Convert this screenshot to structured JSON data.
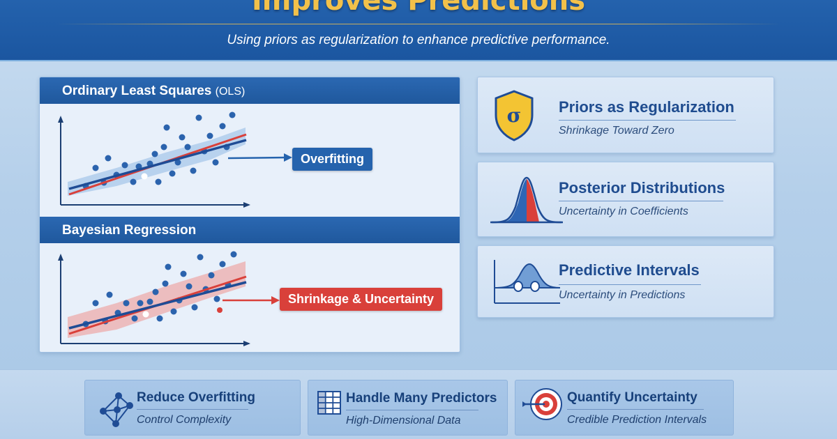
{
  "header": {
    "title": "Improves Predictions",
    "subtitle": "Using priors as regularization to enhance predictive performance."
  },
  "left_panel": {
    "ols": {
      "title": "Ordinary Least Squares",
      "title_suffix": "(OLS)",
      "tag": "Overfitting"
    },
    "bayesian": {
      "title": "Bayesian Regression",
      "tag": "Shrinkage & Uncertainty"
    }
  },
  "cards": [
    {
      "title": "Priors as Regularization",
      "subtitle": "Shrinkage Toward Zero",
      "icon": "shield-sigma-icon",
      "icon_text": "σ"
    },
    {
      "title": "Posterior Distributions",
      "subtitle": "Uncertainty in Coefficients",
      "icon": "bell-curve-icon"
    },
    {
      "title": "Predictive Intervals",
      "subtitle": "Uncertainty in Predictions",
      "icon": "interval-curve-icon"
    }
  ],
  "bottom": [
    {
      "title": "Reduce Overfitting",
      "subtitle": "Control Complexity",
      "icon": "network-icon"
    },
    {
      "title": "Handle Many Predictors",
      "subtitle": "High-Dimensional Data",
      "icon": "grid-icon"
    },
    {
      "title": "Quantify Uncertainty",
      "subtitle": "Credible Prediction Intervals",
      "icon": "target-icon"
    }
  ],
  "colors": {
    "header_blue": "#1f5aa6",
    "gold": "#f2c14a",
    "accent_blue": "#2563ad",
    "accent_red": "#d9403a"
  }
}
